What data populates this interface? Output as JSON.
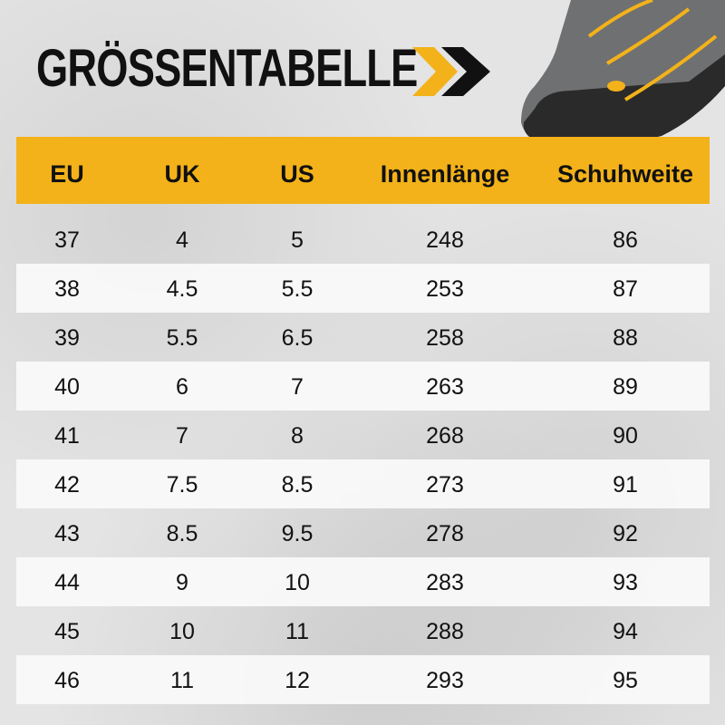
{
  "title": "GRÖSSENTABELLE",
  "colors": {
    "accent": "#f3b21a",
    "text": "#111111"
  },
  "icons": {
    "arrow": "double-chevron-right-icon",
    "product": "shoe-image"
  },
  "table": {
    "headers": [
      "EU",
      "UK",
      "US",
      "Innenlänge",
      "Schuhweite"
    ],
    "rows": [
      [
        "37",
        "4",
        "5",
        "248",
        "86"
      ],
      [
        "38",
        "4.5",
        "5.5",
        "253",
        "87"
      ],
      [
        "39",
        "5.5",
        "6.5",
        "258",
        "88"
      ],
      [
        "40",
        "6",
        "7",
        "263",
        "89"
      ],
      [
        "41",
        "7",
        "8",
        "268",
        "90"
      ],
      [
        "42",
        "7.5",
        "8.5",
        "273",
        "91"
      ],
      [
        "43",
        "8.5",
        "9.5",
        "278",
        "92"
      ],
      [
        "44",
        "9",
        "10",
        "283",
        "93"
      ],
      [
        "45",
        "10",
        "11",
        "288",
        "94"
      ],
      [
        "46",
        "11",
        "12",
        "293",
        "95"
      ]
    ]
  }
}
